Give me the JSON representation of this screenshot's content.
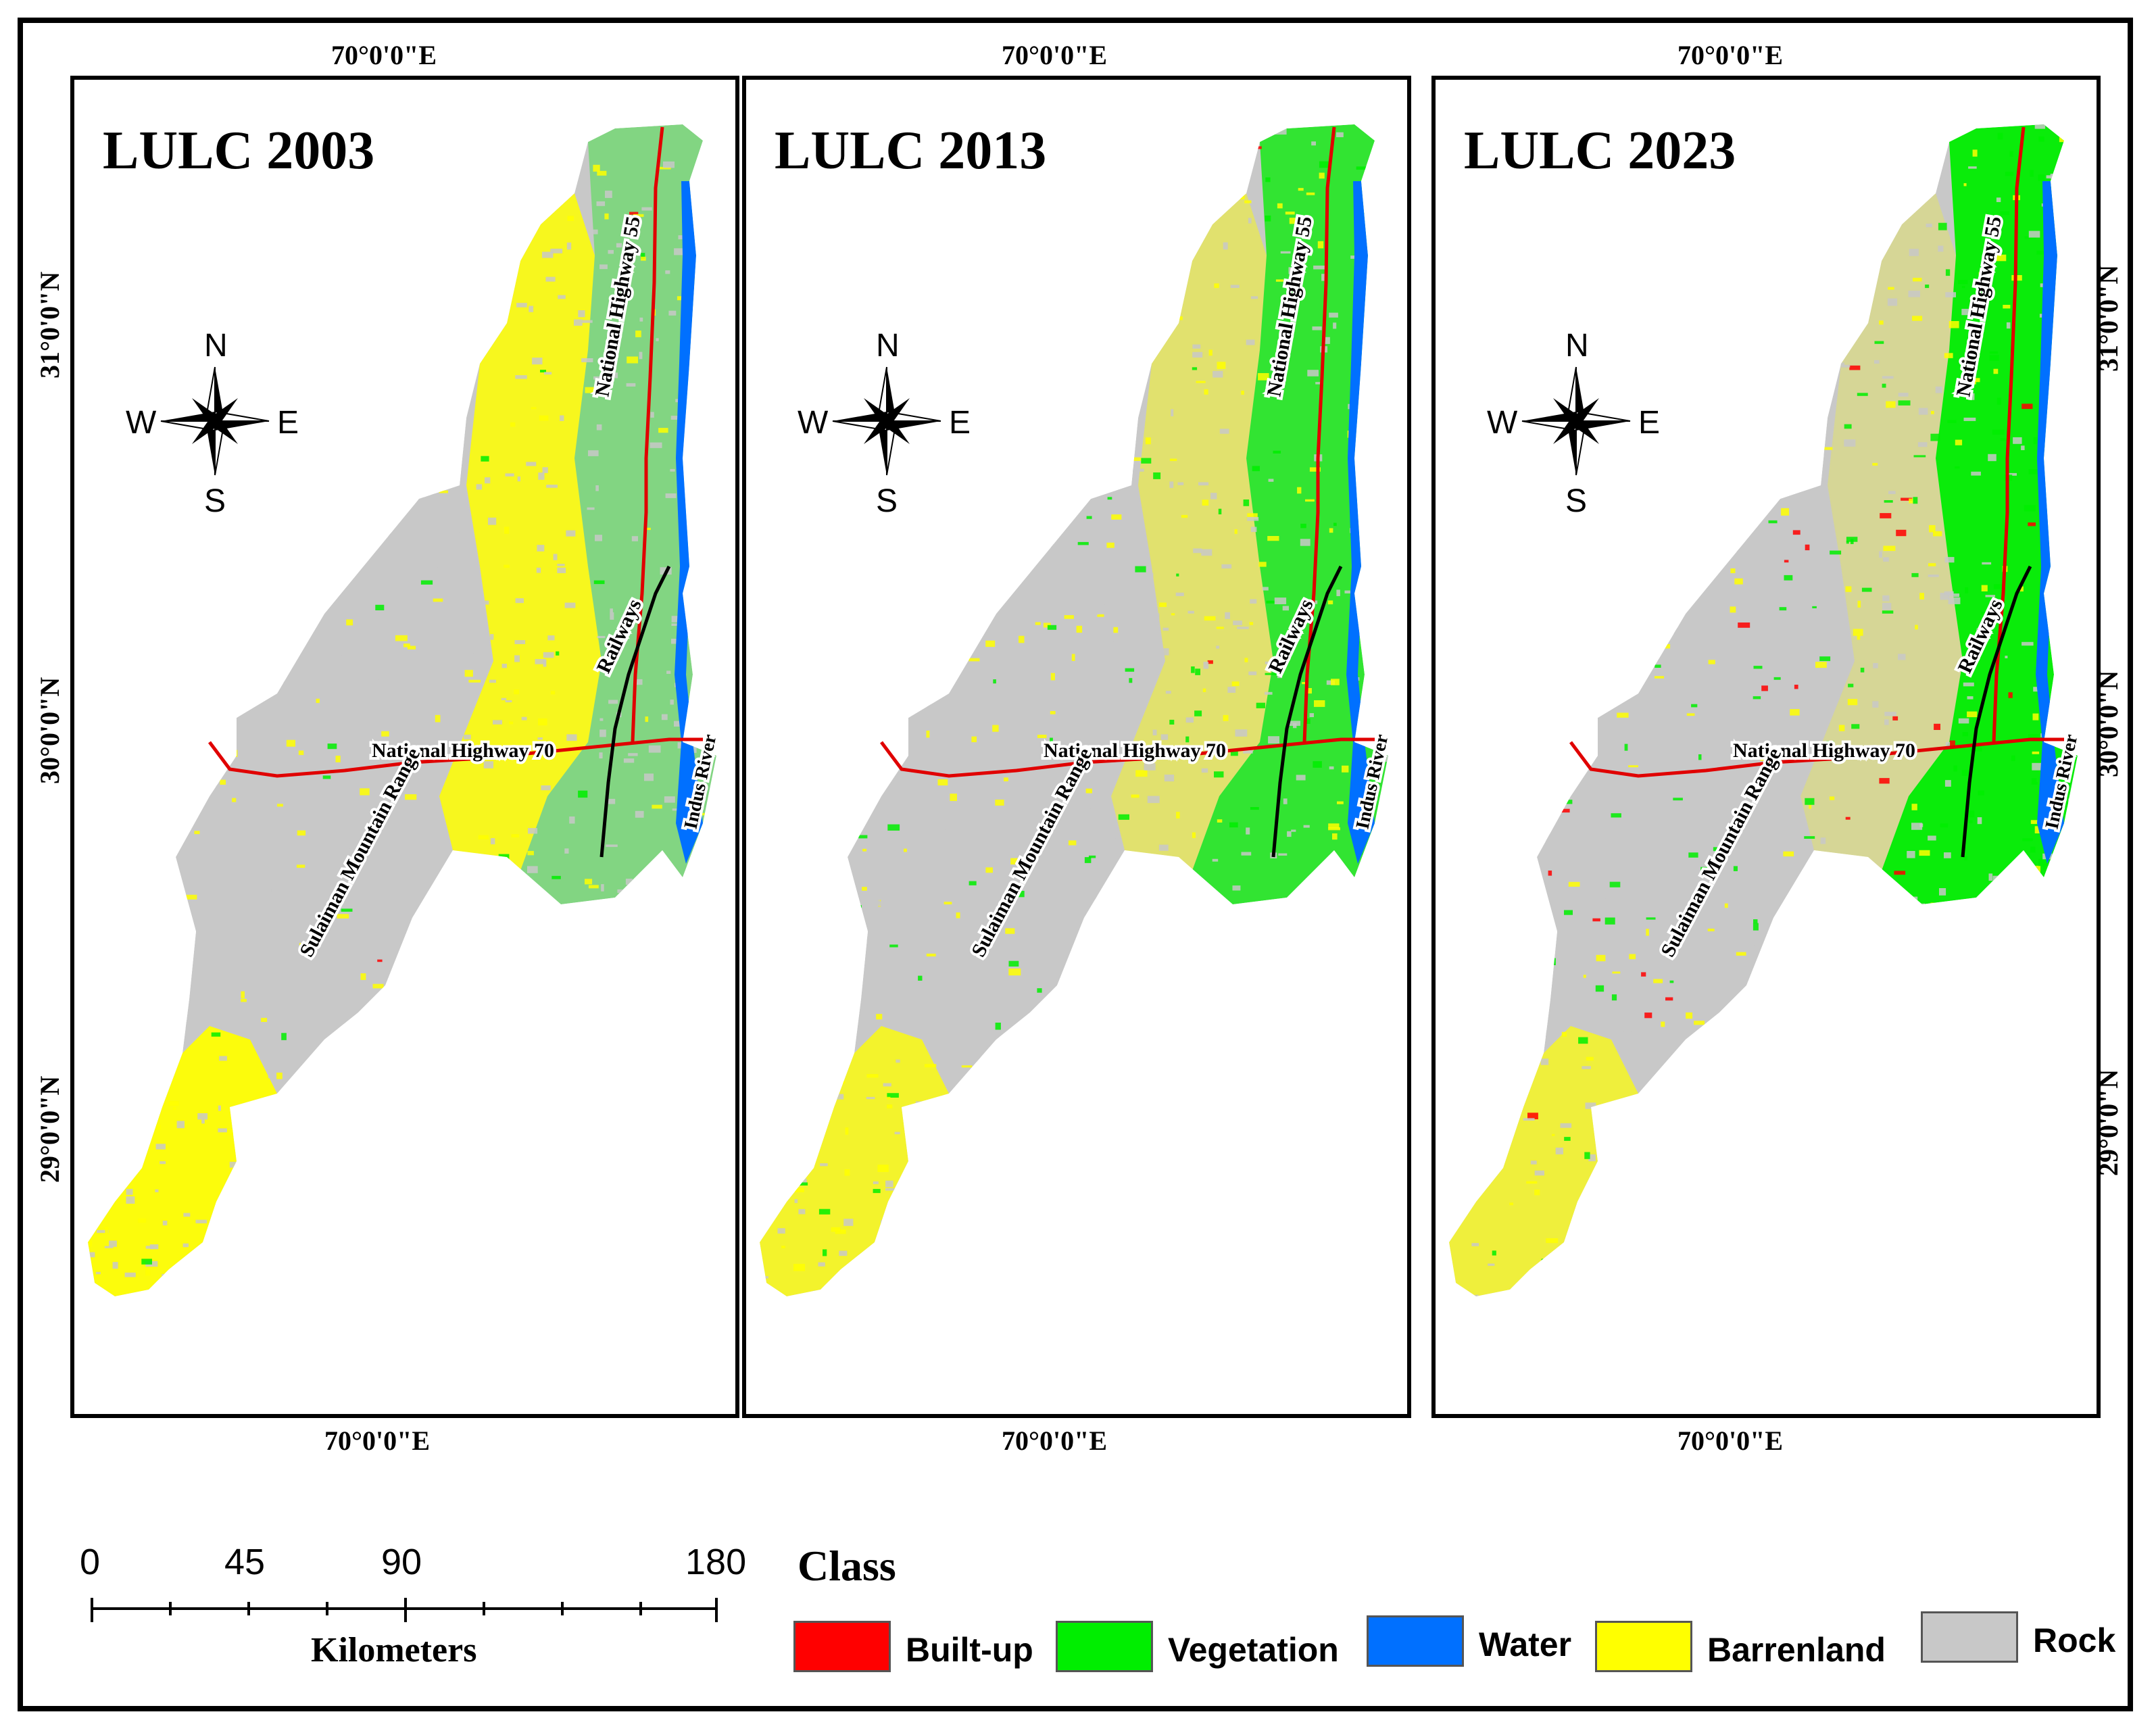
{
  "panels": [
    {
      "title": "LULC 2003",
      "variant": "2003"
    },
    {
      "title": "LULC 2013",
      "variant": "2013"
    },
    {
      "title": "LULC 2023",
      "variant": "2023"
    }
  ],
  "coordinates": {
    "longitude": "70°0'0\"E",
    "lat_31": "31°0'0\"N",
    "lat_30": "30°0'0\"N",
    "lat_29": "29°0'0\"N"
  },
  "compass": {
    "north": "N",
    "south": "S",
    "east": "E",
    "west": "W"
  },
  "map_labels": {
    "nh55": "National Highway 55",
    "nh70": "National Highway 70",
    "railways": "Railways",
    "indus": "Indus River",
    "sulaiman": "Sulaiman Mountain Range"
  },
  "scale_bar": {
    "ticks": [
      "0",
      "45",
      "90",
      "180"
    ],
    "unit": "Kilometers"
  },
  "legend": {
    "title": "Class",
    "items": [
      {
        "label": "Built-up",
        "color": "#ff0000"
      },
      {
        "label": "Vegetation",
        "color": "#00ee00"
      },
      {
        "label": "Water",
        "color": "#0070ff"
      },
      {
        "label": "Barrenland",
        "color": "#ffff00"
      },
      {
        "label": "Rock",
        "color": "#c8c8c8"
      }
    ]
  },
  "colors": {
    "builtup": "#ff0000",
    "vegetation": "#00ee00",
    "water": "#0070ff",
    "barren": "#ffff00",
    "rock": "#c8c8c8",
    "road": "#e00000",
    "rail": "#000000"
  }
}
